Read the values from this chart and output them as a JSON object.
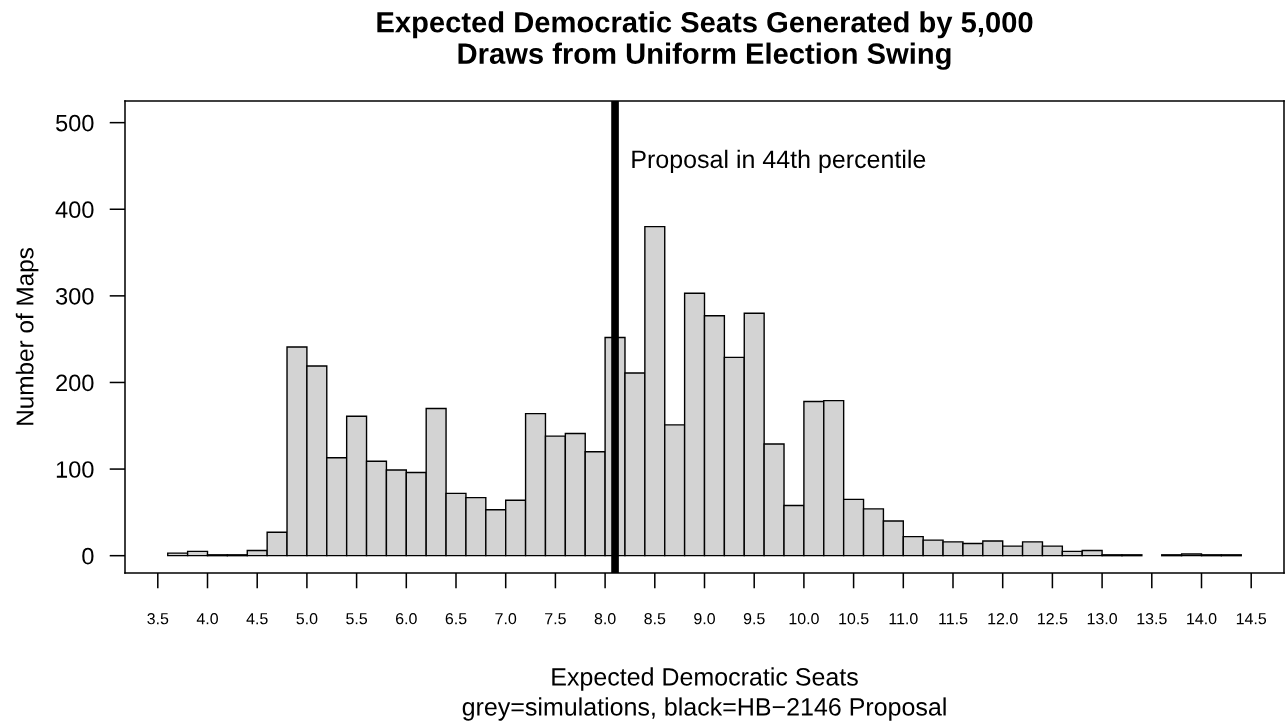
{
  "chart_data": {
    "type": "histogram",
    "title": "Expected Democratic Seats Generated by 5,000\nDraws from Uniform Election Swing",
    "xlabel": "Expected Democratic Seats",
    "ylabel": "Number of Maps",
    "annotations": [
      "grey=simulations, black=HB−2146 Proposal"
    ],
    "bins": [
      3.6,
      3.8,
      4.0,
      4.2,
      4.4,
      4.6,
      4.8,
      5.0,
      5.2,
      5.4,
      5.6,
      5.8,
      6.0,
      6.2,
      6.4,
      6.6,
      6.8,
      7.0,
      7.2,
      7.4,
      7.6,
      7.8,
      8.0,
      8.2,
      8.4,
      8.6,
      8.8,
      9.0,
      9.2,
      9.4,
      9.6,
      9.8,
      10.0,
      10.2,
      10.4,
      10.6,
      10.8,
      11.0,
      11.2,
      11.4,
      11.6,
      11.8,
      12.0,
      12.2,
      12.4,
      12.6,
      12.8,
      13.0,
      13.2,
      13.4,
      13.6,
      13.8,
      14.0,
      14.2,
      14.4
    ],
    "values": [
      3,
      5,
      1,
      1,
      6,
      27,
      241,
      219,
      113,
      161,
      109,
      99,
      96,
      170,
      72,
      67,
      53,
      64,
      164,
      138,
      141,
      120,
      252,
      211,
      380,
      151,
      303,
      277,
      229,
      280,
      129,
      58,
      178,
      179,
      65,
      54,
      40,
      22,
      18,
      16,
      14,
      17,
      11,
      16,
      11,
      5,
      6,
      1,
      1,
      0,
      1,
      2,
      1,
      1
    ],
    "color": "#d3d3d3",
    "ref_lines": [
      {
        "axis": "x",
        "value": 8.1,
        "label": "Proposal in 44th percentile",
        "color": "#000000"
      }
    ],
    "xlim": [
      3.17,
      14.83
    ],
    "ylim": [
      -20,
      525
    ],
    "xticks": [
      3.5,
      {
        "value": 4,
        "label": "4.0"
      },
      4.5,
      {
        "value": 5,
        "label": "5.0"
      },
      5.5,
      {
        "value": 6,
        "label": "6.0"
      },
      6.5,
      {
        "value": 7,
        "label": "7.0"
      },
      7.5,
      {
        "value": 8,
        "label": "8.0"
      },
      8.5,
      {
        "value": 9,
        "label": "9.0"
      },
      9.5,
      {
        "value": 10,
        "label": "10.0"
      },
      10.5,
      {
        "value": 11,
        "label": "11.0"
      },
      11.5,
      {
        "value": 12,
        "label": "12.0"
      },
      12.5,
      {
        "value": 13,
        "label": "13.0"
      },
      13.5,
      {
        "value": 14,
        "label": "14.0"
      },
      14.5
    ],
    "yticks": [
      0,
      100,
      200,
      300,
      400,
      500
    ],
    "grid": false
  }
}
